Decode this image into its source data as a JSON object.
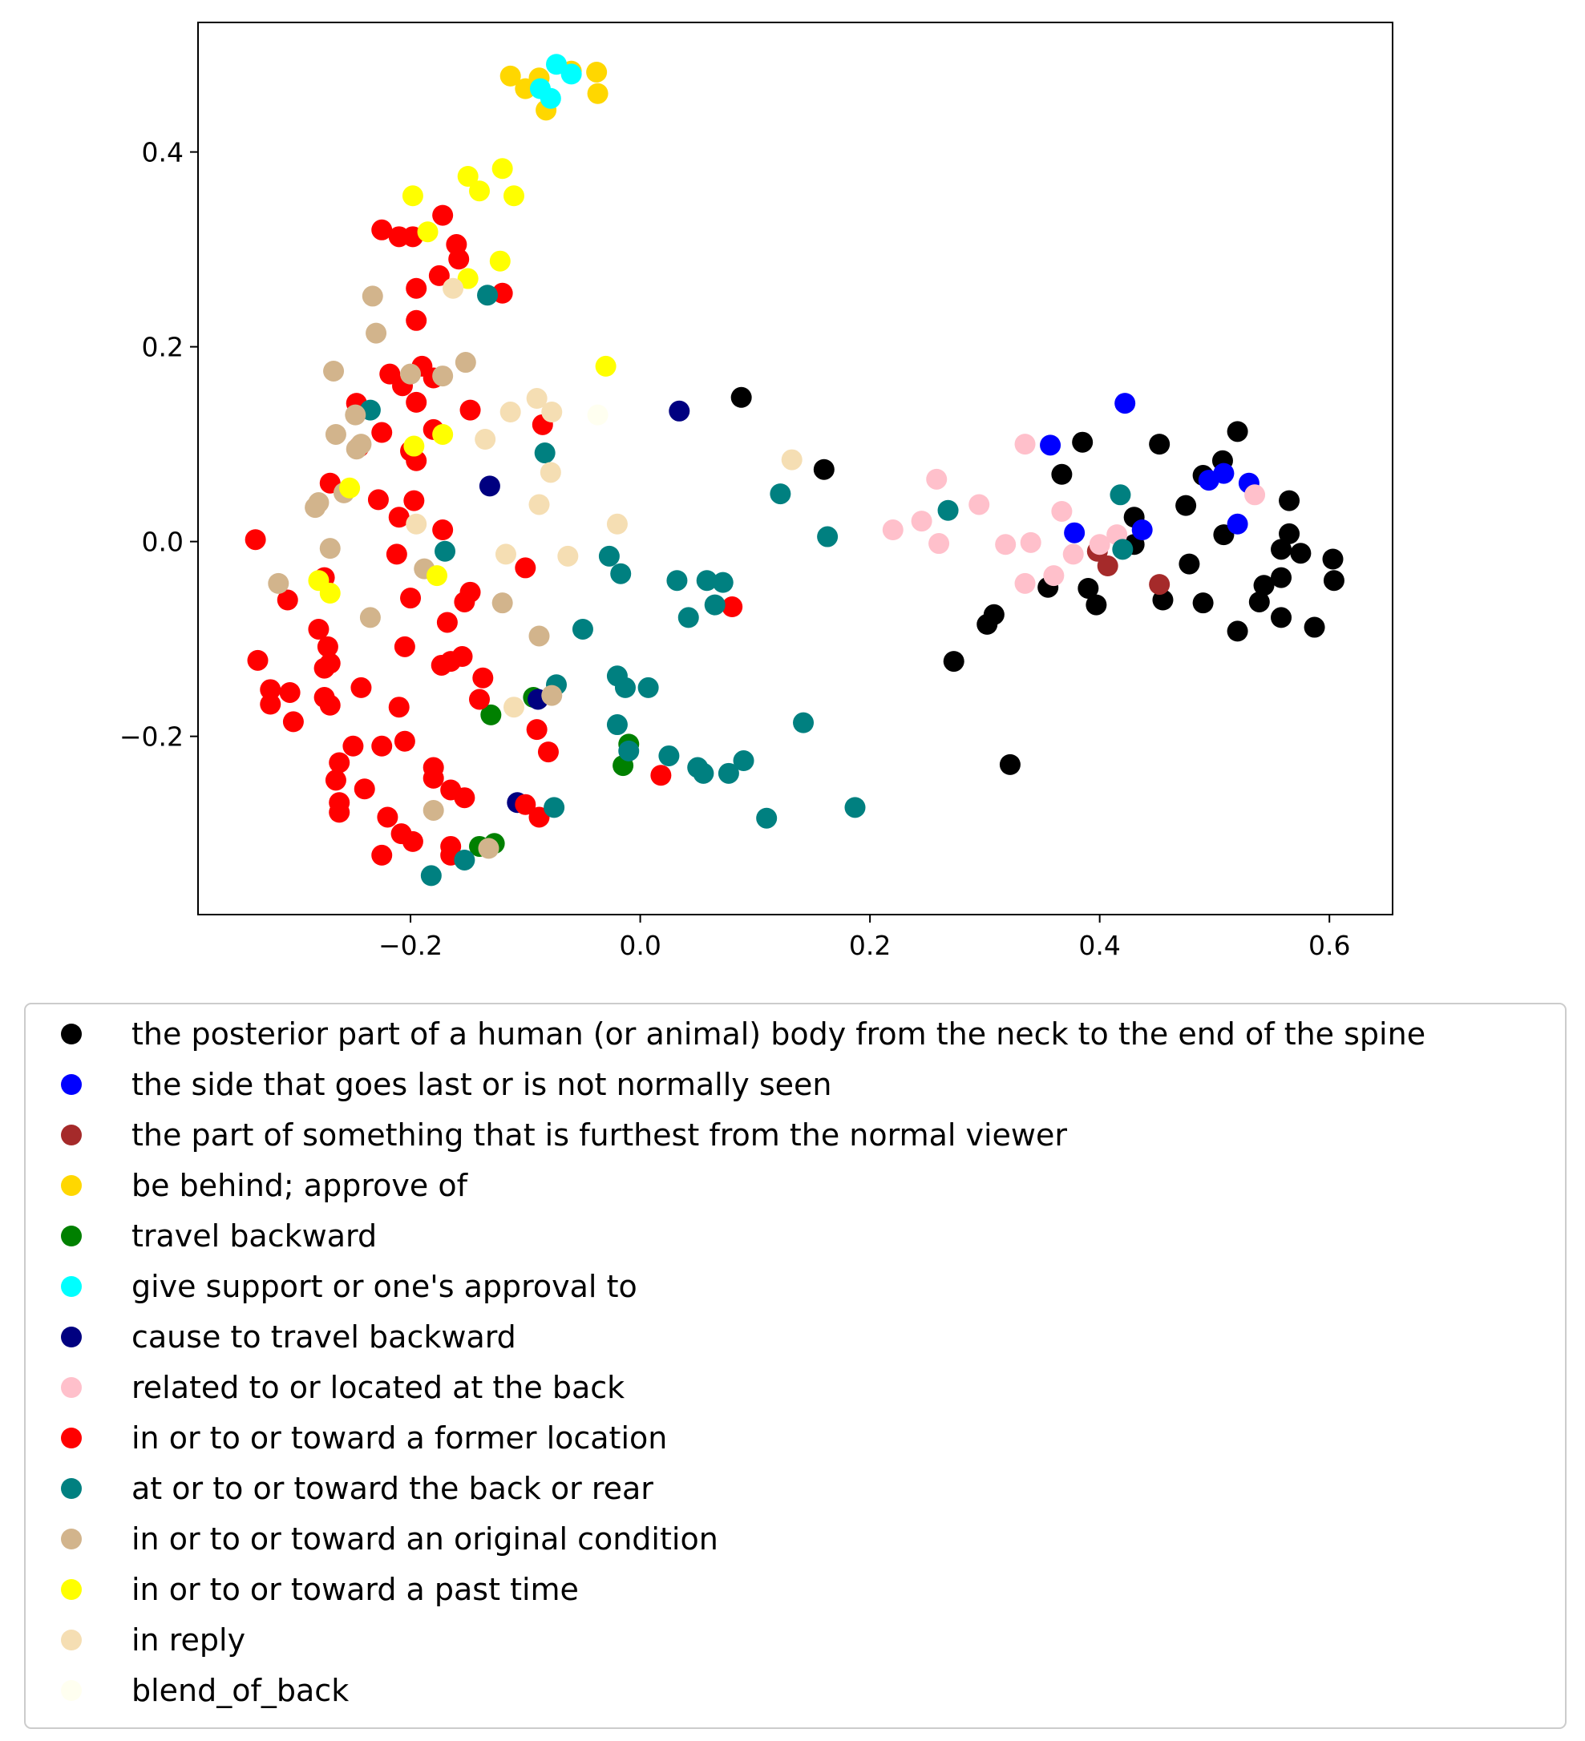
{
  "chart_data": {
    "type": "scatter",
    "title": "",
    "xlabel": "",
    "ylabel": "",
    "xlim": [
      -0.385,
      0.655
    ],
    "ylim": [
      -0.383,
      0.533
    ],
    "xticks": [
      {
        "value": -0.2,
        "label": "−0.2"
      },
      {
        "value": 0.0,
        "label": "0.0"
      },
      {
        "value": 0.2,
        "label": "0.2"
      },
      {
        "value": 0.4,
        "label": "0.4"
      },
      {
        "value": 0.6,
        "label": "0.6"
      }
    ],
    "yticks": [
      {
        "value": -0.2,
        "label": "−0.2"
      },
      {
        "value": 0.0,
        "label": "0.0"
      },
      {
        "value": 0.2,
        "label": "0.2"
      },
      {
        "value": 0.4,
        "label": "0.4"
      }
    ],
    "grid": false,
    "legend_position": "below",
    "series": [
      {
        "name": "the posterior part of a human (or animal) body from the neck to the end of the spine",
        "color": "#000000",
        "points": [
          [
            0.088,
            0.148
          ],
          [
            0.16,
            0.074
          ],
          [
            0.385,
            0.102
          ],
          [
            0.367,
            0.069
          ],
          [
            0.452,
            0.1
          ],
          [
            0.52,
            0.113
          ],
          [
            0.507,
            0.083
          ],
          [
            0.49,
            0.068
          ],
          [
            0.565,
            0.042
          ],
          [
            0.475,
            0.037
          ],
          [
            0.43,
            0.025
          ],
          [
            0.508,
            0.007
          ],
          [
            0.565,
            0.008
          ],
          [
            0.558,
            -0.008
          ],
          [
            0.575,
            -0.012
          ],
          [
            0.603,
            -0.018
          ],
          [
            0.604,
            -0.04
          ],
          [
            0.558,
            -0.037
          ],
          [
            0.543,
            -0.045
          ],
          [
            0.539,
            -0.062
          ],
          [
            0.558,
            -0.078
          ],
          [
            0.587,
            -0.088
          ],
          [
            0.52,
            -0.092
          ],
          [
            0.49,
            -0.063
          ],
          [
            0.455,
            -0.06
          ],
          [
            0.478,
            -0.023
          ],
          [
            0.43,
            -0.003
          ],
          [
            0.39,
            -0.048
          ],
          [
            0.397,
            -0.065
          ],
          [
            0.355,
            -0.047
          ],
          [
            0.308,
            -0.075
          ],
          [
            0.302,
            -0.085
          ],
          [
            0.273,
            -0.123
          ],
          [
            0.322,
            -0.229
          ]
        ]
      },
      {
        "name": "the side that goes last or is not normally seen",
        "color": "#0000ff",
        "points": [
          [
            0.422,
            0.142
          ],
          [
            0.357,
            0.099
          ],
          [
            0.508,
            0.07
          ],
          [
            0.495,
            0.063
          ],
          [
            0.53,
            0.06
          ],
          [
            0.52,
            0.018
          ],
          [
            0.437,
            0.012
          ],
          [
            0.378,
            0.009
          ]
        ]
      },
      {
        "name": "the part of something that is furthest from the normal viewer",
        "color": "#a52a2a",
        "points": [
          [
            0.398,
            -0.01
          ],
          [
            0.407,
            -0.025
          ],
          [
            0.452,
            -0.044
          ]
        ]
      },
      {
        "name": "be behind; approve of",
        "color": "#ffd700",
        "points": [
          [
            -0.113,
            0.478
          ],
          [
            -0.1,
            0.465
          ],
          [
            -0.088,
            0.476
          ],
          [
            -0.06,
            0.483
          ],
          [
            -0.038,
            0.482
          ],
          [
            -0.037,
            0.46
          ],
          [
            -0.082,
            0.443
          ]
        ]
      },
      {
        "name": "travel backward",
        "color": "#008000",
        "points": [
          [
            -0.093,
            -0.16
          ],
          [
            -0.13,
            -0.178
          ],
          [
            -0.01,
            -0.208
          ],
          [
            -0.015,
            -0.23
          ],
          [
            -0.127,
            -0.31
          ],
          [
            -0.14,
            -0.313
          ]
        ]
      },
      {
        "name": "give support or one's approval to",
        "color": "#00ffff",
        "points": [
          [
            -0.073,
            0.49
          ],
          [
            -0.06,
            0.48
          ],
          [
            -0.087,
            0.465
          ],
          [
            -0.078,
            0.455
          ]
        ]
      },
      {
        "name": "cause to travel backward",
        "color": "#000080",
        "points": [
          [
            0.034,
            0.134
          ],
          [
            -0.131,
            0.057
          ],
          [
            -0.089,
            -0.162
          ],
          [
            -0.107,
            -0.268
          ]
        ]
      },
      {
        "name": "related to or located at the back",
        "color": "#ffc0cb",
        "points": [
          [
            0.335,
            0.1
          ],
          [
            0.258,
            0.064
          ],
          [
            0.295,
            0.038
          ],
          [
            0.367,
            0.031
          ],
          [
            0.245,
            0.021
          ],
          [
            0.22,
            0.012
          ],
          [
            0.26,
            -0.002
          ],
          [
            0.318,
            -0.003
          ],
          [
            0.34,
            -0.001
          ],
          [
            0.377,
            -0.013
          ],
          [
            0.4,
            -0.003
          ],
          [
            0.415,
            0.007
          ],
          [
            0.535,
            0.048
          ],
          [
            0.335,
            -0.043
          ],
          [
            0.36,
            -0.035
          ]
        ]
      },
      {
        "name": "in or to or toward a former location",
        "color": "#ff0000",
        "points": [
          [
            -0.225,
            0.32
          ],
          [
            -0.21,
            0.313
          ],
          [
            -0.198,
            0.313
          ],
          [
            -0.172,
            0.335
          ],
          [
            -0.16,
            0.305
          ],
          [
            -0.158,
            0.29
          ],
          [
            -0.175,
            0.273
          ],
          [
            -0.195,
            0.26
          ],
          [
            -0.12,
            0.255
          ],
          [
            -0.195,
            0.227
          ],
          [
            -0.218,
            0.172
          ],
          [
            -0.19,
            0.18
          ],
          [
            -0.207,
            0.16
          ],
          [
            -0.18,
            0.168
          ],
          [
            -0.195,
            0.143
          ],
          [
            -0.247,
            0.142
          ],
          [
            -0.148,
            0.135
          ],
          [
            -0.225,
            0.112
          ],
          [
            -0.18,
            0.115
          ],
          [
            -0.085,
            0.12
          ],
          [
            -0.245,
            0.097
          ],
          [
            -0.2,
            0.093
          ],
          [
            -0.195,
            0.083
          ],
          [
            -0.27,
            0.06
          ],
          [
            -0.228,
            0.043
          ],
          [
            -0.197,
            0.042
          ],
          [
            -0.21,
            0.025
          ],
          [
            -0.172,
            0.012
          ],
          [
            -0.335,
            0.002
          ],
          [
            -0.212,
            -0.013
          ],
          [
            -0.1,
            -0.027
          ],
          [
            -0.275,
            -0.037
          ],
          [
            -0.2,
            -0.058
          ],
          [
            -0.148,
            -0.052
          ],
          [
            -0.307,
            -0.06
          ],
          [
            -0.153,
            -0.062
          ],
          [
            0.08,
            -0.067
          ],
          [
            -0.168,
            -0.083
          ],
          [
            -0.28,
            -0.09
          ],
          [
            -0.272,
            -0.108
          ],
          [
            -0.205,
            -0.108
          ],
          [
            -0.27,
            -0.125
          ],
          [
            -0.275,
            -0.13
          ],
          [
            -0.333,
            -0.122
          ],
          [
            -0.155,
            -0.118
          ],
          [
            -0.165,
            -0.123
          ],
          [
            -0.173,
            -0.127
          ],
          [
            -0.137,
            -0.14
          ],
          [
            -0.322,
            -0.152
          ],
          [
            -0.305,
            -0.155
          ],
          [
            -0.243,
            -0.15
          ],
          [
            -0.275,
            -0.16
          ],
          [
            -0.322,
            -0.167
          ],
          [
            -0.27,
            -0.168
          ],
          [
            -0.21,
            -0.17
          ],
          [
            -0.14,
            -0.162
          ],
          [
            -0.302,
            -0.185
          ],
          [
            -0.09,
            -0.193
          ],
          [
            -0.25,
            -0.21
          ],
          [
            -0.225,
            -0.21
          ],
          [
            -0.205,
            -0.205
          ],
          [
            -0.08,
            -0.216
          ],
          [
            -0.262,
            -0.227
          ],
          [
            -0.18,
            -0.232
          ],
          [
            -0.265,
            -0.245
          ],
          [
            -0.18,
            -0.243
          ],
          [
            -0.165,
            -0.255
          ],
          [
            -0.24,
            -0.254
          ],
          [
            -0.153,
            -0.263
          ],
          [
            -0.262,
            -0.268
          ],
          [
            -0.262,
            -0.278
          ],
          [
            0.018,
            -0.24
          ],
          [
            -0.1,
            -0.27
          ],
          [
            -0.088,
            -0.283
          ],
          [
            -0.22,
            -0.283
          ],
          [
            -0.208,
            -0.3
          ],
          [
            -0.198,
            -0.308
          ],
          [
            -0.165,
            -0.313
          ],
          [
            -0.225,
            -0.322
          ],
          [
            -0.165,
            -0.322
          ]
        ]
      },
      {
        "name": "at or to or toward the back or rear",
        "color": "#008080",
        "points": [
          [
            -0.133,
            0.253
          ],
          [
            -0.235,
            0.135
          ],
          [
            -0.083,
            0.091
          ],
          [
            0.122,
            0.049
          ],
          [
            0.418,
            0.048
          ],
          [
            0.268,
            0.032
          ],
          [
            0.163,
            0.005
          ],
          [
            -0.17,
            -0.01
          ],
          [
            -0.027,
            -0.015
          ],
          [
            -0.017,
            -0.033
          ],
          [
            0.032,
            -0.04
          ],
          [
            0.058,
            -0.04
          ],
          [
            0.072,
            -0.042
          ],
          [
            0.42,
            -0.008
          ],
          [
            0.042,
            -0.078
          ],
          [
            0.065,
            -0.065
          ],
          [
            -0.05,
            -0.09
          ],
          [
            -0.02,
            -0.138
          ],
          [
            -0.013,
            -0.15
          ],
          [
            0.007,
            -0.15
          ],
          [
            -0.073,
            -0.147
          ],
          [
            0.142,
            -0.186
          ],
          [
            -0.02,
            -0.188
          ],
          [
            -0.01,
            -0.215
          ],
          [
            0.025,
            -0.22
          ],
          [
            0.05,
            -0.232
          ],
          [
            0.055,
            -0.238
          ],
          [
            0.077,
            -0.238
          ],
          [
            0.09,
            -0.225
          ],
          [
            -0.075,
            -0.273
          ],
          [
            0.11,
            -0.284
          ],
          [
            0.187,
            -0.273
          ],
          [
            -0.153,
            -0.327
          ],
          [
            -0.182,
            -0.343
          ]
        ]
      },
      {
        "name": "in or to or toward an original condition",
        "color": "#d2b48c",
        "points": [
          [
            -0.233,
            0.252
          ],
          [
            -0.23,
            0.214
          ],
          [
            -0.267,
            0.175
          ],
          [
            -0.152,
            0.184
          ],
          [
            -0.2,
            0.172
          ],
          [
            -0.172,
            0.17
          ],
          [
            -0.248,
            0.13
          ],
          [
            -0.265,
            0.11
          ],
          [
            -0.243,
            0.1
          ],
          [
            -0.247,
            0.095
          ],
          [
            -0.258,
            0.05
          ],
          [
            -0.28,
            0.04
          ],
          [
            -0.283,
            0.035
          ],
          [
            -0.27,
            -0.007
          ],
          [
            -0.188,
            -0.028
          ],
          [
            -0.315,
            -0.043
          ],
          [
            -0.12,
            -0.063
          ],
          [
            -0.235,
            -0.078
          ],
          [
            -0.088,
            -0.097
          ],
          [
            -0.077,
            -0.158
          ],
          [
            -0.18,
            -0.276
          ],
          [
            -0.132,
            -0.315
          ]
        ]
      },
      {
        "name": "in or to or toward a past time",
        "color": "#ffff00",
        "points": [
          [
            -0.12,
            0.383
          ],
          [
            -0.15,
            0.375
          ],
          [
            -0.14,
            0.36
          ],
          [
            -0.11,
            0.355
          ],
          [
            -0.198,
            0.355
          ],
          [
            -0.185,
            0.318
          ],
          [
            -0.122,
            0.288
          ],
          [
            -0.15,
            0.27
          ],
          [
            -0.03,
            0.18
          ],
          [
            -0.172,
            0.11
          ],
          [
            -0.197,
            0.098
          ],
          [
            -0.253,
            0.055
          ],
          [
            -0.28,
            -0.04
          ],
          [
            -0.27,
            -0.053
          ],
          [
            -0.177,
            -0.035
          ]
        ]
      },
      {
        "name": "in reply",
        "color": "#f5deb3",
        "points": [
          [
            -0.163,
            0.26
          ],
          [
            0.132,
            0.084
          ],
          [
            -0.09,
            0.147
          ],
          [
            -0.077,
            0.133
          ],
          [
            -0.113,
            0.133
          ],
          [
            -0.135,
            0.105
          ],
          [
            -0.078,
            0.071
          ],
          [
            -0.088,
            0.038
          ],
          [
            -0.195,
            0.018
          ],
          [
            -0.02,
            0.018
          ],
          [
            -0.117,
            -0.013
          ],
          [
            -0.063,
            -0.015
          ],
          [
            -0.11,
            -0.17
          ]
        ]
      },
      {
        "name": "blend_of_back",
        "color": "#fffff0",
        "points": [
          [
            -0.037,
            0.13
          ]
        ]
      }
    ]
  }
}
